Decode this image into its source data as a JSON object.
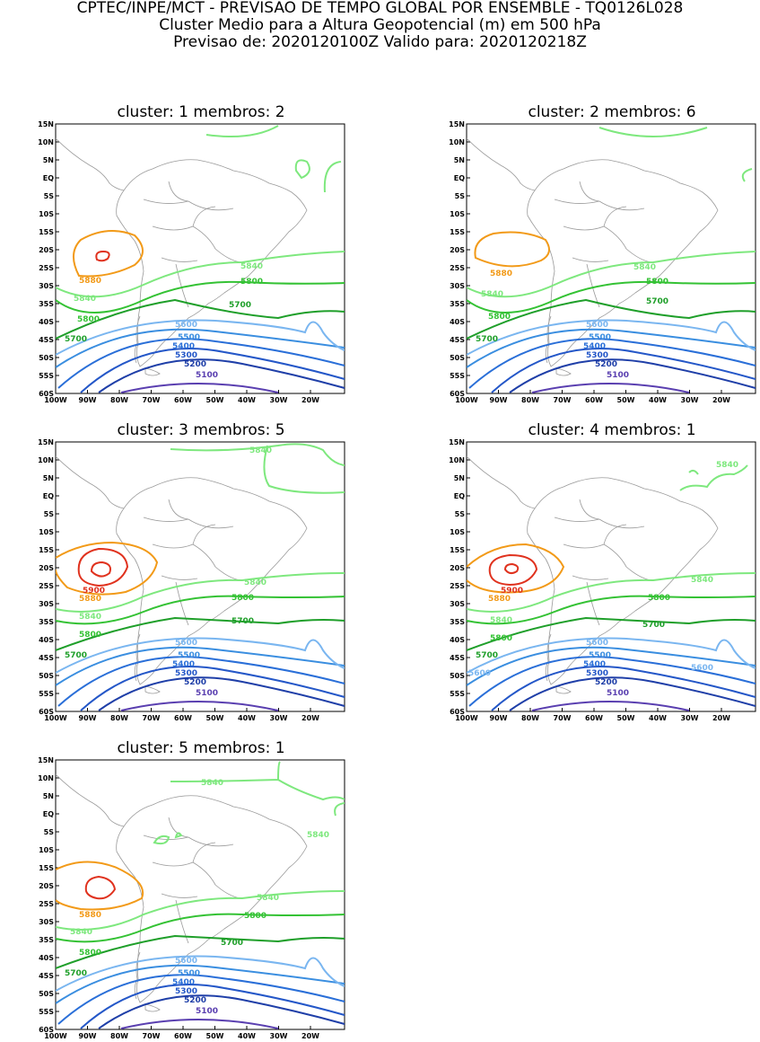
{
  "header": {
    "line1": "CPTEC/INPE/MCT - PREVISAO DE TEMPO GLOBAL POR ENSEMBLE - TQ0126L028",
    "line2": "Cluster Medio para a Altura Geopotencial (m) em 500 hPa",
    "line3": "Previsao de: 2020120100Z   Valido para: 2020120218Z"
  },
  "axes": {
    "lat_labels": [
      "15N",
      "10N",
      "5N",
      "EQ",
      "5S",
      "10S",
      "15S",
      "20S",
      "25S",
      "30S",
      "35S",
      "40S",
      "45S",
      "50S",
      "55S",
      "60S"
    ],
    "lon_labels": [
      "100W",
      "90W",
      "80W",
      "70W",
      "60W",
      "50W",
      "40W",
      "30W",
      "20W"
    ]
  },
  "colors": {
    "c5100": "#5a3fb0",
    "c5200": "#1f3fa8",
    "c5300": "#2457c8",
    "c5400": "#2a6fd8",
    "c5500": "#3a8ee0",
    "c5600": "#7ab6f0",
    "c5700": "#1f9f2a",
    "c5800": "#34c234",
    "c5840": "#7ee87e",
    "c5880": "#f29a18",
    "c5900": "#e0321e",
    "coast": "#9a9a9a"
  },
  "panels": [
    {
      "title": "cluster: 1   membros: 2",
      "labels": {
        "5100": "5100",
        "5200": "5200",
        "5300": "5300",
        "5400": "5400",
        "5500": "5500",
        "5600": "5600",
        "5700a": "5700",
        "5700b": "5700",
        "5800a": "5800",
        "5800b": "5800",
        "5840a": "5840",
        "5840b": "5840",
        "5880": "5880"
      }
    },
    {
      "title": "cluster: 2   membros: 6",
      "labels": {
        "5100": "5100",
        "5200": "5200",
        "5300": "5300",
        "5400": "5400",
        "5500": "5500",
        "5600": "5600",
        "5700a": "5700",
        "5700b": "5700",
        "5800a": "5800",
        "5800b": "5800",
        "5840a": "5840",
        "5840b": "5840",
        "5880": "5880"
      }
    },
    {
      "title": "cluster: 3   membros: 5",
      "labels": {
        "5100": "5100",
        "5200": "5200",
        "5300": "5300",
        "5400": "5400",
        "5500": "5500",
        "5600": "5600",
        "5700a": "5700",
        "5700b": "5700",
        "5800a": "5800",
        "5800b": "5800",
        "5840a": "5840",
        "5840b": "5840",
        "5840c": "5840",
        "5880": "5880",
        "5900": "5900"
      }
    },
    {
      "title": "cluster: 4   membros: 1",
      "labels": {
        "5100": "5100",
        "5200": "5200",
        "5300": "5300",
        "5400": "5400",
        "5500": "5500",
        "5600": "5600",
        "5600b": "5600",
        "5600c": "5600",
        "5700a": "5700",
        "5700b": "5700",
        "5800a": "5800",
        "5800b": "5800",
        "5840a": "5840",
        "5840b": "5840",
        "5840c": "5840",
        "5880": "5880",
        "5900": "5900"
      }
    },
    {
      "title": "cluster: 5   membros: 1",
      "labels": {
        "5100": "5100",
        "5200": "5200",
        "5300": "5300",
        "5400": "5400",
        "5500": "5500",
        "5600": "5600",
        "5700a": "5700",
        "5700b": "5700",
        "5800a": "5800",
        "5800b": "5800",
        "5840a": "5840",
        "5840b": "5840",
        "5840c": "5840",
        "5840d": "5840",
        "5880": "5880"
      }
    }
  ]
}
